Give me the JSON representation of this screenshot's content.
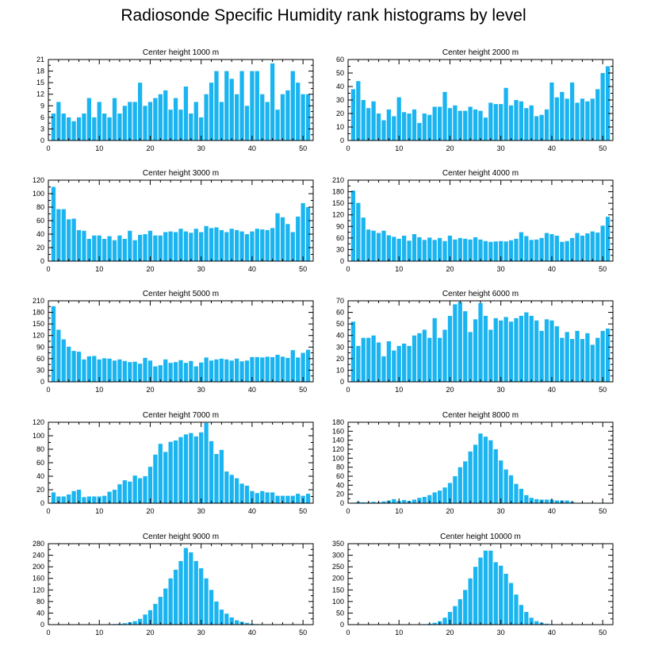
{
  "figure_title": "Radiosonde Specific Humidity rank histograms by level",
  "colors": {
    "bar": "#1ab5f0",
    "axis": "#000000",
    "background": "#ffffff"
  },
  "chart_data": [
    {
      "type": "bar",
      "title": "Center height 1000 m",
      "xlabel": "",
      "ylabel": "",
      "xlim": [
        0,
        52
      ],
      "ylim": [
        0,
        21
      ],
      "xticks": [
        0,
        10,
        20,
        30,
        40,
        50
      ],
      "yticks": [
        0,
        3,
        6,
        9,
        12,
        15,
        18,
        21
      ],
      "x": [
        1,
        2,
        3,
        4,
        5,
        6,
        7,
        8,
        9,
        10,
        11,
        12,
        13,
        14,
        15,
        16,
        17,
        18,
        19,
        20,
        21,
        22,
        23,
        24,
        25,
        26,
        27,
        28,
        29,
        30,
        31,
        32,
        33,
        34,
        35,
        36,
        37,
        38,
        39,
        40,
        41,
        42,
        43,
        44,
        45,
        46,
        47,
        48,
        49,
        50,
        51
      ],
      "values": [
        7,
        10,
        7,
        6,
        5,
        6,
        7,
        11,
        6,
        10,
        7,
        6,
        11,
        7,
        9,
        10,
        10,
        15,
        9,
        10,
        11,
        12,
        13,
        8,
        11,
        8,
        14,
        7,
        10,
        6,
        12,
        15,
        18,
        10,
        18,
        16,
        12,
        18,
        9,
        18,
        18,
        12,
        10,
        20,
        8,
        12,
        13,
        18,
        15,
        12,
        12
      ]
    },
    {
      "type": "bar",
      "title": "Center height 2000 m",
      "xlabel": "",
      "ylabel": "",
      "xlim": [
        0,
        52
      ],
      "ylim": [
        0,
        60
      ],
      "xticks": [
        0,
        10,
        20,
        30,
        40,
        50
      ],
      "yticks": [
        0,
        10,
        20,
        30,
        40,
        50,
        60
      ],
      "x": [
        1,
        2,
        3,
        4,
        5,
        6,
        7,
        8,
        9,
        10,
        11,
        12,
        13,
        14,
        15,
        16,
        17,
        18,
        19,
        20,
        21,
        22,
        23,
        24,
        25,
        26,
        27,
        28,
        29,
        30,
        31,
        32,
        33,
        34,
        35,
        36,
        37,
        38,
        39,
        40,
        41,
        42,
        43,
        44,
        45,
        46,
        47,
        48,
        49,
        50,
        51
      ],
      "values": [
        38,
        44,
        30,
        24,
        29,
        20,
        15,
        23,
        18,
        32,
        21,
        20,
        23,
        13,
        20,
        19,
        25,
        25,
        36,
        24,
        26,
        22,
        22,
        25,
        23,
        22,
        17,
        28,
        27,
        27,
        39,
        26,
        30,
        29,
        24,
        26,
        18,
        19,
        23,
        43,
        32,
        36,
        31,
        43,
        28,
        31,
        29,
        31,
        38,
        50,
        55
      ]
    },
    {
      "type": "bar",
      "title": "Center height 3000 m",
      "xlabel": "",
      "ylabel": "",
      "xlim": [
        0,
        52
      ],
      "ylim": [
        0,
        120
      ],
      "xticks": [
        0,
        10,
        20,
        30,
        40,
        50
      ],
      "yticks": [
        0,
        20,
        40,
        60,
        80,
        100,
        120
      ],
      "x": [
        1,
        2,
        3,
        4,
        5,
        6,
        7,
        8,
        9,
        10,
        11,
        12,
        13,
        14,
        15,
        16,
        17,
        18,
        19,
        20,
        21,
        22,
        23,
        24,
        25,
        26,
        27,
        28,
        29,
        30,
        31,
        32,
        33,
        34,
        35,
        36,
        37,
        38,
        39,
        40,
        41,
        42,
        43,
        44,
        45,
        46,
        47,
        48,
        49,
        50,
        51
      ],
      "values": [
        110,
        77,
        77,
        62,
        63,
        46,
        45,
        33,
        38,
        38,
        33,
        37,
        31,
        38,
        33,
        45,
        31,
        39,
        40,
        45,
        38,
        38,
        43,
        44,
        43,
        48,
        44,
        42,
        48,
        43,
        52,
        49,
        50,
        46,
        43,
        48,
        46,
        44,
        40,
        44,
        48,
        47,
        46,
        49,
        71,
        65,
        55,
        43,
        66,
        86,
        80
      ]
    },
    {
      "type": "bar",
      "title": "Center height 4000 m",
      "xlabel": "",
      "ylabel": "",
      "xlim": [
        0,
        52
      ],
      "ylim": [
        0,
        210
      ],
      "xticks": [
        0,
        10,
        20,
        30,
        40,
        50
      ],
      "yticks": [
        0,
        30,
        60,
        90,
        120,
        150,
        180,
        210
      ],
      "x": [
        1,
        2,
        3,
        4,
        5,
        6,
        7,
        8,
        9,
        10,
        11,
        12,
        13,
        14,
        15,
        16,
        17,
        18,
        19,
        20,
        21,
        22,
        23,
        24,
        25,
        26,
        27,
        28,
        29,
        30,
        31,
        32,
        33,
        34,
        35,
        36,
        37,
        38,
        39,
        40,
        41,
        42,
        43,
        44,
        45,
        46,
        47,
        48,
        49,
        50,
        51
      ],
      "values": [
        183,
        151,
        113,
        82,
        79,
        73,
        79,
        67,
        63,
        58,
        66,
        53,
        70,
        62,
        55,
        61,
        55,
        60,
        52,
        66,
        56,
        60,
        58,
        56,
        62,
        56,
        52,
        50,
        51,
        52,
        51,
        54,
        58,
        75,
        65,
        55,
        56,
        60,
        73,
        70,
        66,
        50,
        52,
        60,
        73,
        66,
        72,
        77,
        74,
        92,
        115
      ]
    },
    {
      "type": "bar",
      "title": "Center height 5000 m",
      "xlabel": "",
      "ylabel": "",
      "xlim": [
        0,
        52
      ],
      "ylim": [
        0,
        210
      ],
      "xticks": [
        0,
        10,
        20,
        30,
        40,
        50
      ],
      "yticks": [
        0,
        30,
        60,
        90,
        120,
        150,
        180,
        210
      ],
      "x": [
        1,
        2,
        3,
        4,
        5,
        6,
        7,
        8,
        9,
        10,
        11,
        12,
        13,
        14,
        15,
        16,
        17,
        18,
        19,
        20,
        21,
        22,
        23,
        24,
        25,
        26,
        27,
        28,
        29,
        30,
        31,
        32,
        33,
        34,
        35,
        36,
        37,
        38,
        39,
        40,
        41,
        42,
        43,
        44,
        45,
        46,
        47,
        48,
        49,
        50,
        51
      ],
      "values": [
        196,
        135,
        110,
        91,
        80,
        78,
        58,
        66,
        67,
        58,
        61,
        60,
        55,
        58,
        54,
        51,
        52,
        47,
        62,
        55,
        40,
        43,
        58,
        49,
        51,
        56,
        49,
        54,
        40,
        50,
        63,
        55,
        58,
        60,
        58,
        55,
        60,
        53,
        55,
        64,
        64,
        63,
        65,
        64,
        70,
        65,
        62,
        82,
        63,
        75,
        83
      ]
    },
    {
      "type": "bar",
      "title": "Center height 6000 m",
      "xlabel": "",
      "ylabel": "",
      "xlim": [
        0,
        52
      ],
      "ylim": [
        0,
        70
      ],
      "xticks": [
        0,
        10,
        20,
        30,
        40,
        50
      ],
      "yticks": [
        0,
        10,
        20,
        30,
        40,
        50,
        60,
        70
      ],
      "x": [
        1,
        2,
        3,
        4,
        5,
        6,
        7,
        8,
        9,
        10,
        11,
        12,
        13,
        14,
        15,
        16,
        17,
        18,
        19,
        20,
        21,
        22,
        23,
        24,
        25,
        26,
        27,
        28,
        29,
        30,
        31,
        32,
        33,
        34,
        35,
        36,
        37,
        38,
        39,
        40,
        41,
        42,
        43,
        44,
        45,
        46,
        47,
        48,
        49,
        50,
        51
      ],
      "values": [
        52,
        31,
        38,
        38,
        40,
        34,
        22,
        35,
        27,
        31,
        33,
        31,
        40,
        42,
        45,
        38,
        55,
        38,
        45,
        57,
        67,
        69,
        61,
        43,
        54,
        68,
        57,
        45,
        55,
        53,
        56,
        52,
        55,
        57,
        60,
        57,
        53,
        44,
        54,
        53,
        48,
        38,
        43,
        37,
        44,
        37,
        42,
        32,
        38,
        44,
        46
      ]
    },
    {
      "type": "bar",
      "title": "Center height 7000 m",
      "xlabel": "",
      "ylabel": "",
      "xlim": [
        0,
        52
      ],
      "ylim": [
        0,
        120
      ],
      "xticks": [
        0,
        10,
        20,
        30,
        40,
        50
      ],
      "yticks": [
        0,
        20,
        40,
        60,
        80,
        100,
        120
      ],
      "x": [
        1,
        2,
        3,
        4,
        5,
        6,
        7,
        8,
        9,
        10,
        11,
        12,
        13,
        14,
        15,
        16,
        17,
        18,
        19,
        20,
        21,
        22,
        23,
        24,
        25,
        26,
        27,
        28,
        29,
        30,
        31,
        32,
        33,
        34,
        35,
        36,
        37,
        38,
        39,
        40,
        41,
        42,
        43,
        44,
        45,
        46,
        47,
        48,
        49,
        50,
        51
      ],
      "values": [
        16,
        10,
        10,
        13,
        18,
        20,
        9,
        10,
        10,
        10,
        11,
        17,
        20,
        28,
        34,
        32,
        41,
        37,
        40,
        54,
        72,
        88,
        76,
        91,
        93,
        98,
        102,
        104,
        99,
        105,
        119,
        92,
        73,
        79,
        47,
        42,
        37,
        29,
        26,
        18,
        15,
        18,
        16,
        16,
        11,
        11,
        11,
        11,
        14,
        11,
        14
      ]
    },
    {
      "type": "bar",
      "title": "Center height 8000 m",
      "xlabel": "",
      "ylabel": "",
      "xlim": [
        0,
        52
      ],
      "ylim": [
        0,
        180
      ],
      "xticks": [
        0,
        10,
        20,
        30,
        40,
        50
      ],
      "yticks": [
        0,
        20,
        40,
        60,
        80,
        100,
        120,
        140,
        160,
        180
      ],
      "x": [
        1,
        2,
        3,
        4,
        5,
        6,
        7,
        8,
        9,
        10,
        11,
        12,
        13,
        14,
        15,
        16,
        17,
        18,
        19,
        20,
        21,
        22,
        23,
        24,
        25,
        26,
        27,
        28,
        29,
        30,
        31,
        32,
        33,
        34,
        35,
        36,
        37,
        38,
        39,
        40,
        41,
        42,
        43,
        44,
        45,
        46,
        47,
        48,
        49,
        50,
        51
      ],
      "values": [
        1,
        3,
        2,
        2,
        3,
        2,
        4,
        6,
        9,
        5,
        7,
        5,
        8,
        12,
        14,
        18,
        24,
        28,
        35,
        45,
        60,
        80,
        93,
        115,
        130,
        155,
        148,
        140,
        120,
        95,
        75,
        62,
        43,
        32,
        18,
        12,
        9,
        8,
        8,
        8,
        6,
        6,
        6,
        3,
        1,
        1,
        1,
        1,
        1,
        1,
        1
      ]
    },
    {
      "type": "bar",
      "title": "Center height 9000 m",
      "xlabel": "",
      "ylabel": "",
      "xlim": [
        0,
        52
      ],
      "ylim": [
        0,
        280
      ],
      "xticks": [
        0,
        10,
        20,
        30,
        40,
        50
      ],
      "yticks": [
        0,
        40,
        80,
        120,
        160,
        200,
        240,
        280
      ],
      "x": [
        1,
        2,
        3,
        4,
        5,
        6,
        7,
        8,
        9,
        10,
        11,
        12,
        13,
        14,
        15,
        16,
        17,
        18,
        19,
        20,
        21,
        22,
        23,
        24,
        25,
        26,
        27,
        28,
        29,
        30,
        31,
        32,
        33,
        34,
        35,
        36,
        37,
        38,
        39,
        40,
        41,
        42,
        43,
        44,
        45,
        46,
        47,
        48,
        49,
        50,
        51
      ],
      "values": [
        1,
        1,
        1,
        1,
        1,
        1,
        1,
        1,
        1,
        1,
        1,
        1,
        2,
        3,
        5,
        8,
        12,
        20,
        35,
        50,
        72,
        96,
        125,
        160,
        190,
        220,
        265,
        250,
        220,
        195,
        160,
        120,
        80,
        52,
        38,
        25,
        15,
        10,
        6,
        3,
        2,
        1,
        1,
        1,
        1,
        1,
        1,
        1,
        1,
        1,
        1
      ]
    },
    {
      "type": "bar",
      "title": "Center height 10000 m",
      "xlabel": "",
      "ylabel": "",
      "xlim": [
        0,
        52
      ],
      "ylim": [
        0,
        350
      ],
      "xticks": [
        0,
        10,
        20,
        30,
        40,
        50
      ],
      "yticks": [
        0,
        50,
        100,
        150,
        200,
        250,
        300,
        350
      ],
      "x": [
        1,
        2,
        3,
        4,
        5,
        6,
        7,
        8,
        9,
        10,
        11,
        12,
        13,
        14,
        15,
        16,
        17,
        18,
        19,
        20,
        21,
        22,
        23,
        24,
        25,
        26,
        27,
        28,
        29,
        30,
        31,
        32,
        33,
        34,
        35,
        36,
        37,
        38,
        39,
        40,
        41,
        42,
        43,
        44,
        45,
        46,
        47,
        48,
        49,
        50,
        51
      ],
      "values": [
        1,
        1,
        1,
        1,
        1,
        1,
        1,
        1,
        1,
        1,
        1,
        1,
        1,
        1,
        2,
        4,
        8,
        15,
        30,
        55,
        80,
        110,
        150,
        200,
        250,
        290,
        320,
        320,
        270,
        255,
        220,
        180,
        130,
        85,
        55,
        30,
        15,
        8,
        4,
        2,
        1,
        1,
        1,
        1,
        1,
        1,
        1,
        1,
        1,
        1,
        1
      ]
    }
  ]
}
